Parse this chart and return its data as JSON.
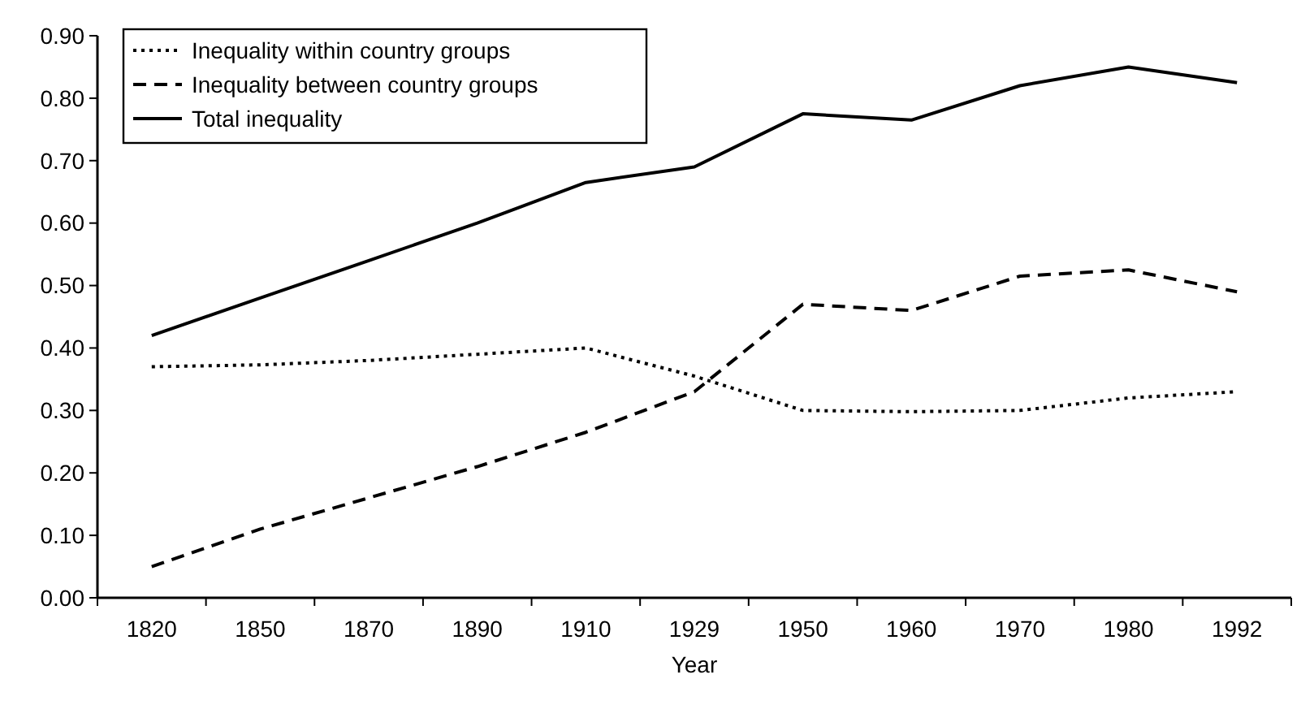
{
  "chart_data": {
    "type": "line",
    "xlabel": "Year",
    "categories": [
      "1820",
      "1850",
      "1870",
      "1890",
      "1910",
      "1929",
      "1950",
      "1960",
      "1970",
      "1980",
      "1992"
    ],
    "ylim": [
      0,
      0.9
    ],
    "yticks": [
      {
        "value": 0,
        "label": "0.00"
      },
      {
        "value": 0.1,
        "label": "0.10"
      },
      {
        "value": 0.2,
        "label": "0.20"
      },
      {
        "value": 0.3,
        "label": "0.30"
      },
      {
        "value": 0.4,
        "label": "0.40"
      },
      {
        "value": 0.5,
        "label": "0.50"
      },
      {
        "value": 0.6,
        "label": "0.60"
      },
      {
        "value": 0.7,
        "label": "0.70"
      },
      {
        "value": 0.8,
        "label": "0.80"
      },
      {
        "value": 0.9,
        "label": "0.90"
      }
    ],
    "grid": false,
    "legend": "top left",
    "marker": "none",
    "series": [
      {
        "name": "Inequality within country groups",
        "color": "#000000",
        "line_style": "dotted",
        "values": [
          0.37,
          0.373,
          0.38,
          0.39,
          0.4,
          0.355,
          0.3,
          0.298,
          0.3,
          0.32,
          0.33
        ]
      },
      {
        "name": "Inequality between country groups",
        "color": "#000000",
        "line_style": "dashed",
        "values": [
          0.05,
          0.11,
          0.16,
          0.21,
          0.265,
          0.33,
          0.47,
          0.46,
          0.515,
          0.525,
          0.49
        ]
      },
      {
        "name": "Total inequality",
        "color": "#000000",
        "line_style": "solid",
        "values": [
          0.42,
          0.48,
          0.54,
          0.6,
          0.665,
          0.69,
          0.775,
          0.765,
          0.82,
          0.85,
          0.825
        ]
      }
    ]
  }
}
